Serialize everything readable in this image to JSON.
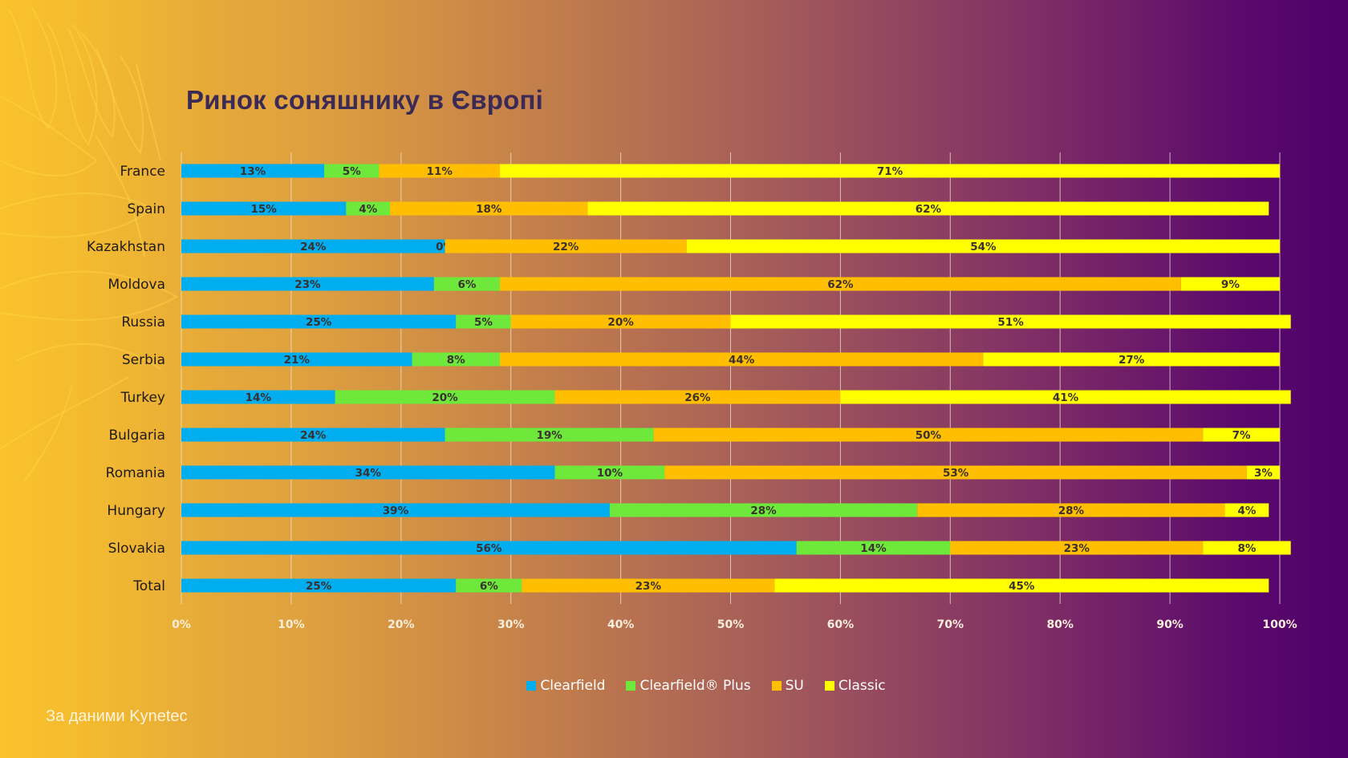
{
  "slide": {
    "title": "Ринок соняшнику в Європі",
    "footer": "За даними Kynetec"
  },
  "chart_data": {
    "type": "bar",
    "orientation": "horizontal",
    "stacked": true,
    "title": "Ринок соняшнику в Європі",
    "xlabel": "",
    "ylabel": "",
    "xlim": [
      0,
      100
    ],
    "x_ticks": [
      "0%",
      "10%",
      "20%",
      "30%",
      "40%",
      "50%",
      "60%",
      "70%",
      "80%",
      "90%",
      "100%"
    ],
    "grid": true,
    "legend_position": "bottom",
    "categories": [
      "France",
      "Spain",
      "Kazakhstan",
      "Moldova",
      "Russia",
      "Serbia",
      "Turkey",
      "Bulgaria",
      "Romania",
      "Hungary",
      "Slovakia",
      "Total"
    ],
    "series": [
      {
        "name": "Clearfield",
        "color": "#00aeef",
        "values": [
          13,
          15,
          24,
          23,
          25,
          21,
          14,
          24,
          34,
          39,
          56,
          25
        ]
      },
      {
        "name": "Clearfield® Plus",
        "color": "#6ee83a",
        "values": [
          5,
          4,
          0,
          6,
          5,
          8,
          20,
          19,
          10,
          28,
          14,
          6
        ]
      },
      {
        "name": "SU",
        "color": "#ffbf00",
        "values": [
          11,
          18,
          22,
          62,
          20,
          44,
          26,
          50,
          53,
          28,
          23,
          23
        ]
      },
      {
        "name": "Classic",
        "color": "#ffff00",
        "values": [
          71,
          62,
          54,
          9,
          51,
          27,
          41,
          7,
          3,
          4,
          8,
          45
        ]
      }
    ],
    "data_label_format": "{value}%"
  }
}
